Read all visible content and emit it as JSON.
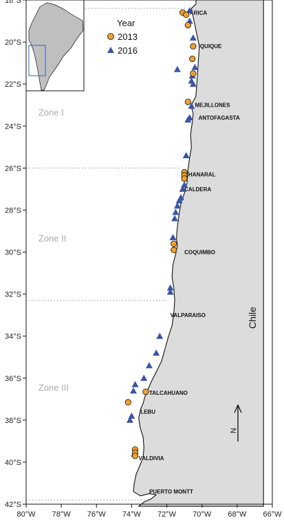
{
  "map": {
    "country_label": "Chile",
    "north_label": "N",
    "colors": {
      "land": "#dcdcdc",
      "sea": "#ffffff",
      "coast": "#111111",
      "marker_2013": "#f0a030",
      "marker_2016": "#3a55a8",
      "zone_line": "#aaaaaa",
      "zone_text": "#aaaaaa"
    },
    "axis": {
      "lon_range": [
        -80,
        -66
      ],
      "lat_range": [
        -42,
        -18
      ],
      "lon_ticks": [
        {
          "value": -80,
          "label": "80°W"
        },
        {
          "value": -78,
          "label": "78°W"
        },
        {
          "value": -76,
          "label": "76°W"
        },
        {
          "value": -74,
          "label": "74°W"
        },
        {
          "value": -72,
          "label": "72°W"
        },
        {
          "value": -70,
          "label": "70°W"
        },
        {
          "value": -68,
          "label": "68°W"
        },
        {
          "value": -66,
          "label": "66°W"
        }
      ],
      "lat_ticks": [
        {
          "value": -18,
          "label": "18°S"
        },
        {
          "value": -20,
          "label": "20°S"
        },
        {
          "value": -22,
          "label": "22°S"
        },
        {
          "value": -24,
          "label": "24°S"
        },
        {
          "value": -26,
          "label": "26°S"
        },
        {
          "value": -28,
          "label": "28°S"
        },
        {
          "value": -30,
          "label": "30°S"
        },
        {
          "value": -32,
          "label": "32°S"
        },
        {
          "value": -34,
          "label": "34°S"
        },
        {
          "value": -36,
          "label": "36°S"
        },
        {
          "value": -38,
          "label": "38°S"
        },
        {
          "value": -40,
          "label": "40°S"
        },
        {
          "value": -42,
          "label": "42°S"
        }
      ]
    },
    "legend": {
      "title": "Year",
      "items": [
        {
          "label": "2013",
          "symbol": "circle",
          "color": "#f0a030"
        },
        {
          "label": "2016",
          "symbol": "triangle",
          "color": "#3a55a8"
        }
      ]
    },
    "zones": [
      {
        "label": "Zone I",
        "lon": -79.3,
        "lat": -23.5
      },
      {
        "label": "Zone II",
        "lon": -79.3,
        "lat": -29.5
      },
      {
        "label": "Zone III",
        "lon": -79.3,
        "lat": -36.6
      }
    ],
    "zone_boundaries": [
      {
        "lat": -18.4,
        "lon_to": -70.9
      },
      {
        "lat": -26.0,
        "lon_to": -71.2
      },
      {
        "lat": -32.3,
        "lon_to": -72.0
      },
      {
        "lat": -41.8,
        "lon_to": -73.1
      }
    ],
    "cities": [
      {
        "label": "ARICA",
        "lon": -70.7,
        "lat": -18.6
      },
      {
        "label": "IQUIQUE",
        "lon": -70.2,
        "lat": -20.2
      },
      {
        "label": "MEJILLONES",
        "lon": -70.4,
        "lat": -23.0
      },
      {
        "label": "ANTOFAGASTA",
        "lon": -70.2,
        "lat": -23.6
      },
      {
        "label": "CHANARAL",
        "lon": -71.0,
        "lat": -26.3
      },
      {
        "label": "CALDERA",
        "lon": -71.0,
        "lat": -27.0
      },
      {
        "label": "COQUIMBO",
        "lon": -71.0,
        "lat": -30.0
      },
      {
        "label": "VALPARAISO",
        "lon": -71.8,
        "lat": -33.0
      },
      {
        "label": "TALCAHUANO",
        "lon": -73.0,
        "lat": -36.7
      },
      {
        "label": "LEBU",
        "lon": -73.5,
        "lat": -37.6
      },
      {
        "label": "VALDIVIA",
        "lon": -73.6,
        "lat": -39.8
      },
      {
        "label": "PUERTO MONTT",
        "lon": -73.0,
        "lat": -41.4
      }
    ],
    "samples_2013": [
      {
        "lon": -71.1,
        "lat": -18.6
      },
      {
        "lon": -70.9,
        "lat": -18.7
      },
      {
        "lon": -70.8,
        "lat": -19.2
      },
      {
        "lon": -70.5,
        "lat": -20.2
      },
      {
        "lon": -70.55,
        "lat": -20.8
      },
      {
        "lon": -70.5,
        "lat": -21.5
      },
      {
        "lon": -70.8,
        "lat": -22.85
      },
      {
        "lon": -71.0,
        "lat": -26.2
      },
      {
        "lon": -71.0,
        "lat": -26.35
      },
      {
        "lon": -71.0,
        "lat": -26.5
      },
      {
        "lon": -71.6,
        "lat": -29.6
      },
      {
        "lon": -71.6,
        "lat": -29.9
      },
      {
        "lon": -73.2,
        "lat": -36.65
      },
      {
        "lon": -74.2,
        "lat": -37.15
      },
      {
        "lon": -73.8,
        "lat": -39.4
      },
      {
        "lon": -73.8,
        "lat": -39.55
      },
      {
        "lon": -73.8,
        "lat": -39.7
      }
    ],
    "samples_2016": [
      {
        "lon": -70.7,
        "lat": -18.5
      },
      {
        "lon": -70.7,
        "lat": -19.0
      },
      {
        "lon": -70.5,
        "lat": -19.8
      },
      {
        "lon": -71.4,
        "lat": -21.3
      },
      {
        "lon": -70.4,
        "lat": -21.2
      },
      {
        "lon": -70.55,
        "lat": -21.6
      },
      {
        "lon": -70.6,
        "lat": -21.85
      },
      {
        "lon": -70.5,
        "lat": -22.0
      },
      {
        "lon": -70.6,
        "lat": -23.05
      },
      {
        "lon": -70.7,
        "lat": -23.6
      },
      {
        "lon": -70.8,
        "lat": -23.7
      },
      {
        "lon": -70.9,
        "lat": -25.4
      },
      {
        "lon": -71.0,
        "lat": -26.8
      },
      {
        "lon": -71.1,
        "lat": -27.0
      },
      {
        "lon": -71.2,
        "lat": -27.4
      },
      {
        "lon": -71.3,
        "lat": -27.55
      },
      {
        "lon": -71.4,
        "lat": -27.8
      },
      {
        "lon": -71.5,
        "lat": -28.1
      },
      {
        "lon": -71.55,
        "lat": -28.4
      },
      {
        "lon": -71.65,
        "lat": -29.3
      },
      {
        "lon": -71.8,
        "lat": -31.7
      },
      {
        "lon": -71.8,
        "lat": -31.9
      },
      {
        "lon": -72.4,
        "lat": -34.0
      },
      {
        "lon": -72.6,
        "lat": -34.8
      },
      {
        "lon": -73.0,
        "lat": -35.4
      },
      {
        "lon": -73.3,
        "lat": -36.0
      },
      {
        "lon": -73.8,
        "lat": -36.3
      },
      {
        "lon": -73.9,
        "lat": -36.6
      },
      {
        "lon": -74.0,
        "lat": -37.8
      },
      {
        "lon": -74.1,
        "lat": -38.0
      },
      {
        "lon": -73.85,
        "lat": -39.6
      }
    ]
  }
}
